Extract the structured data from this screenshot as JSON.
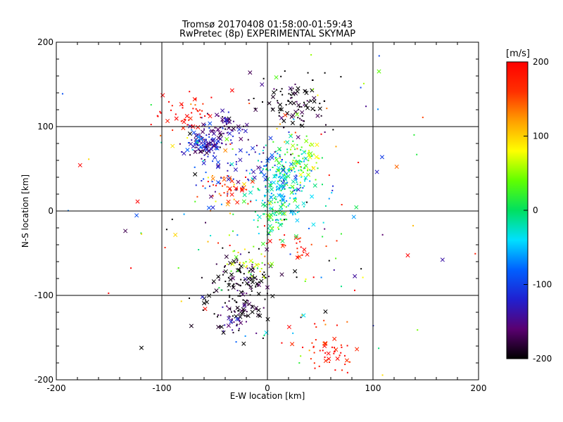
{
  "chart_data": {
    "type": "scatter",
    "title": "Tromsø 20170408 01:58:00-01:59:43",
    "subtitle": "RwPretec (8p) EXPERIMENTAL SKYMAP",
    "xlabel": "E-W location [km]",
    "ylabel": "N-S location [km]",
    "xlim": [
      -200,
      200
    ],
    "ylim": [
      -200,
      200
    ],
    "xticks": [
      "-200",
      "-100",
      "0",
      "100",
      "200"
    ],
    "yticks": [
      "-200",
      "-100",
      "0",
      "100",
      "200"
    ],
    "grid": true,
    "colorbar": {
      "label": "[m/s]",
      "range": [
        -200,
        200
      ],
      "ticks": [
        "200",
        "100",
        "0",
        "-100",
        "-200"
      ],
      "colormap": [
        "#000000",
        "#5a0070",
        "#2020d0",
        "#0060ff",
        "#00e0ff",
        "#00e060",
        "#60ff00",
        "#ffff00",
        "#ffa000",
        "#ff3000",
        "#ff0000"
      ]
    },
    "markers": [
      "dot",
      "x"
    ],
    "clusters": [
      {
        "x": 15,
        "y": 30,
        "v": -30,
        "n": 220,
        "sx": 14,
        "sy": 22
      },
      {
        "x": 30,
        "y": 60,
        "v": 40,
        "n": 70,
        "sx": 12,
        "sy": 12
      },
      {
        "x": -60,
        "y": 80,
        "v": -130,
        "n": 130,
        "sx": 10,
        "sy": 8
      },
      {
        "x": -40,
        "y": 100,
        "v": -150,
        "n": 60,
        "sx": 10,
        "sy": 8
      },
      {
        "x": 25,
        "y": 125,
        "v": -200,
        "n": 100,
        "sx": 18,
        "sy": 18
      },
      {
        "x": -35,
        "y": 25,
        "v": 160,
        "n": 45,
        "sx": 12,
        "sy": 10
      },
      {
        "x": -75,
        "y": 115,
        "v": 190,
        "n": 45,
        "sx": 12,
        "sy": 12
      },
      {
        "x": -25,
        "y": -80,
        "v": -200,
        "n": 110,
        "sx": 15,
        "sy": 15
      },
      {
        "x": -30,
        "y": -120,
        "v": -190,
        "n": 90,
        "sx": 14,
        "sy": 14
      },
      {
        "x": -20,
        "y": -60,
        "v": 60,
        "n": 35,
        "sx": 12,
        "sy": 10
      },
      {
        "x": 5,
        "y": -10,
        "v": 0,
        "n": 40,
        "sx": 10,
        "sy": 12
      },
      {
        "x": 60,
        "y": -165,
        "v": 180,
        "n": 50,
        "sx": 14,
        "sy": 14
      },
      {
        "x": 30,
        "y": -40,
        "v": 190,
        "n": 22,
        "sx": 12,
        "sy": 8
      },
      {
        "x": -20,
        "y": 50,
        "v": -110,
        "n": 80,
        "sx": 30,
        "sy": 25
      },
      {
        "x": 0,
        "y": 0,
        "v": 0,
        "n": 170,
        "sx": 80,
        "sy": 90
      }
    ]
  }
}
